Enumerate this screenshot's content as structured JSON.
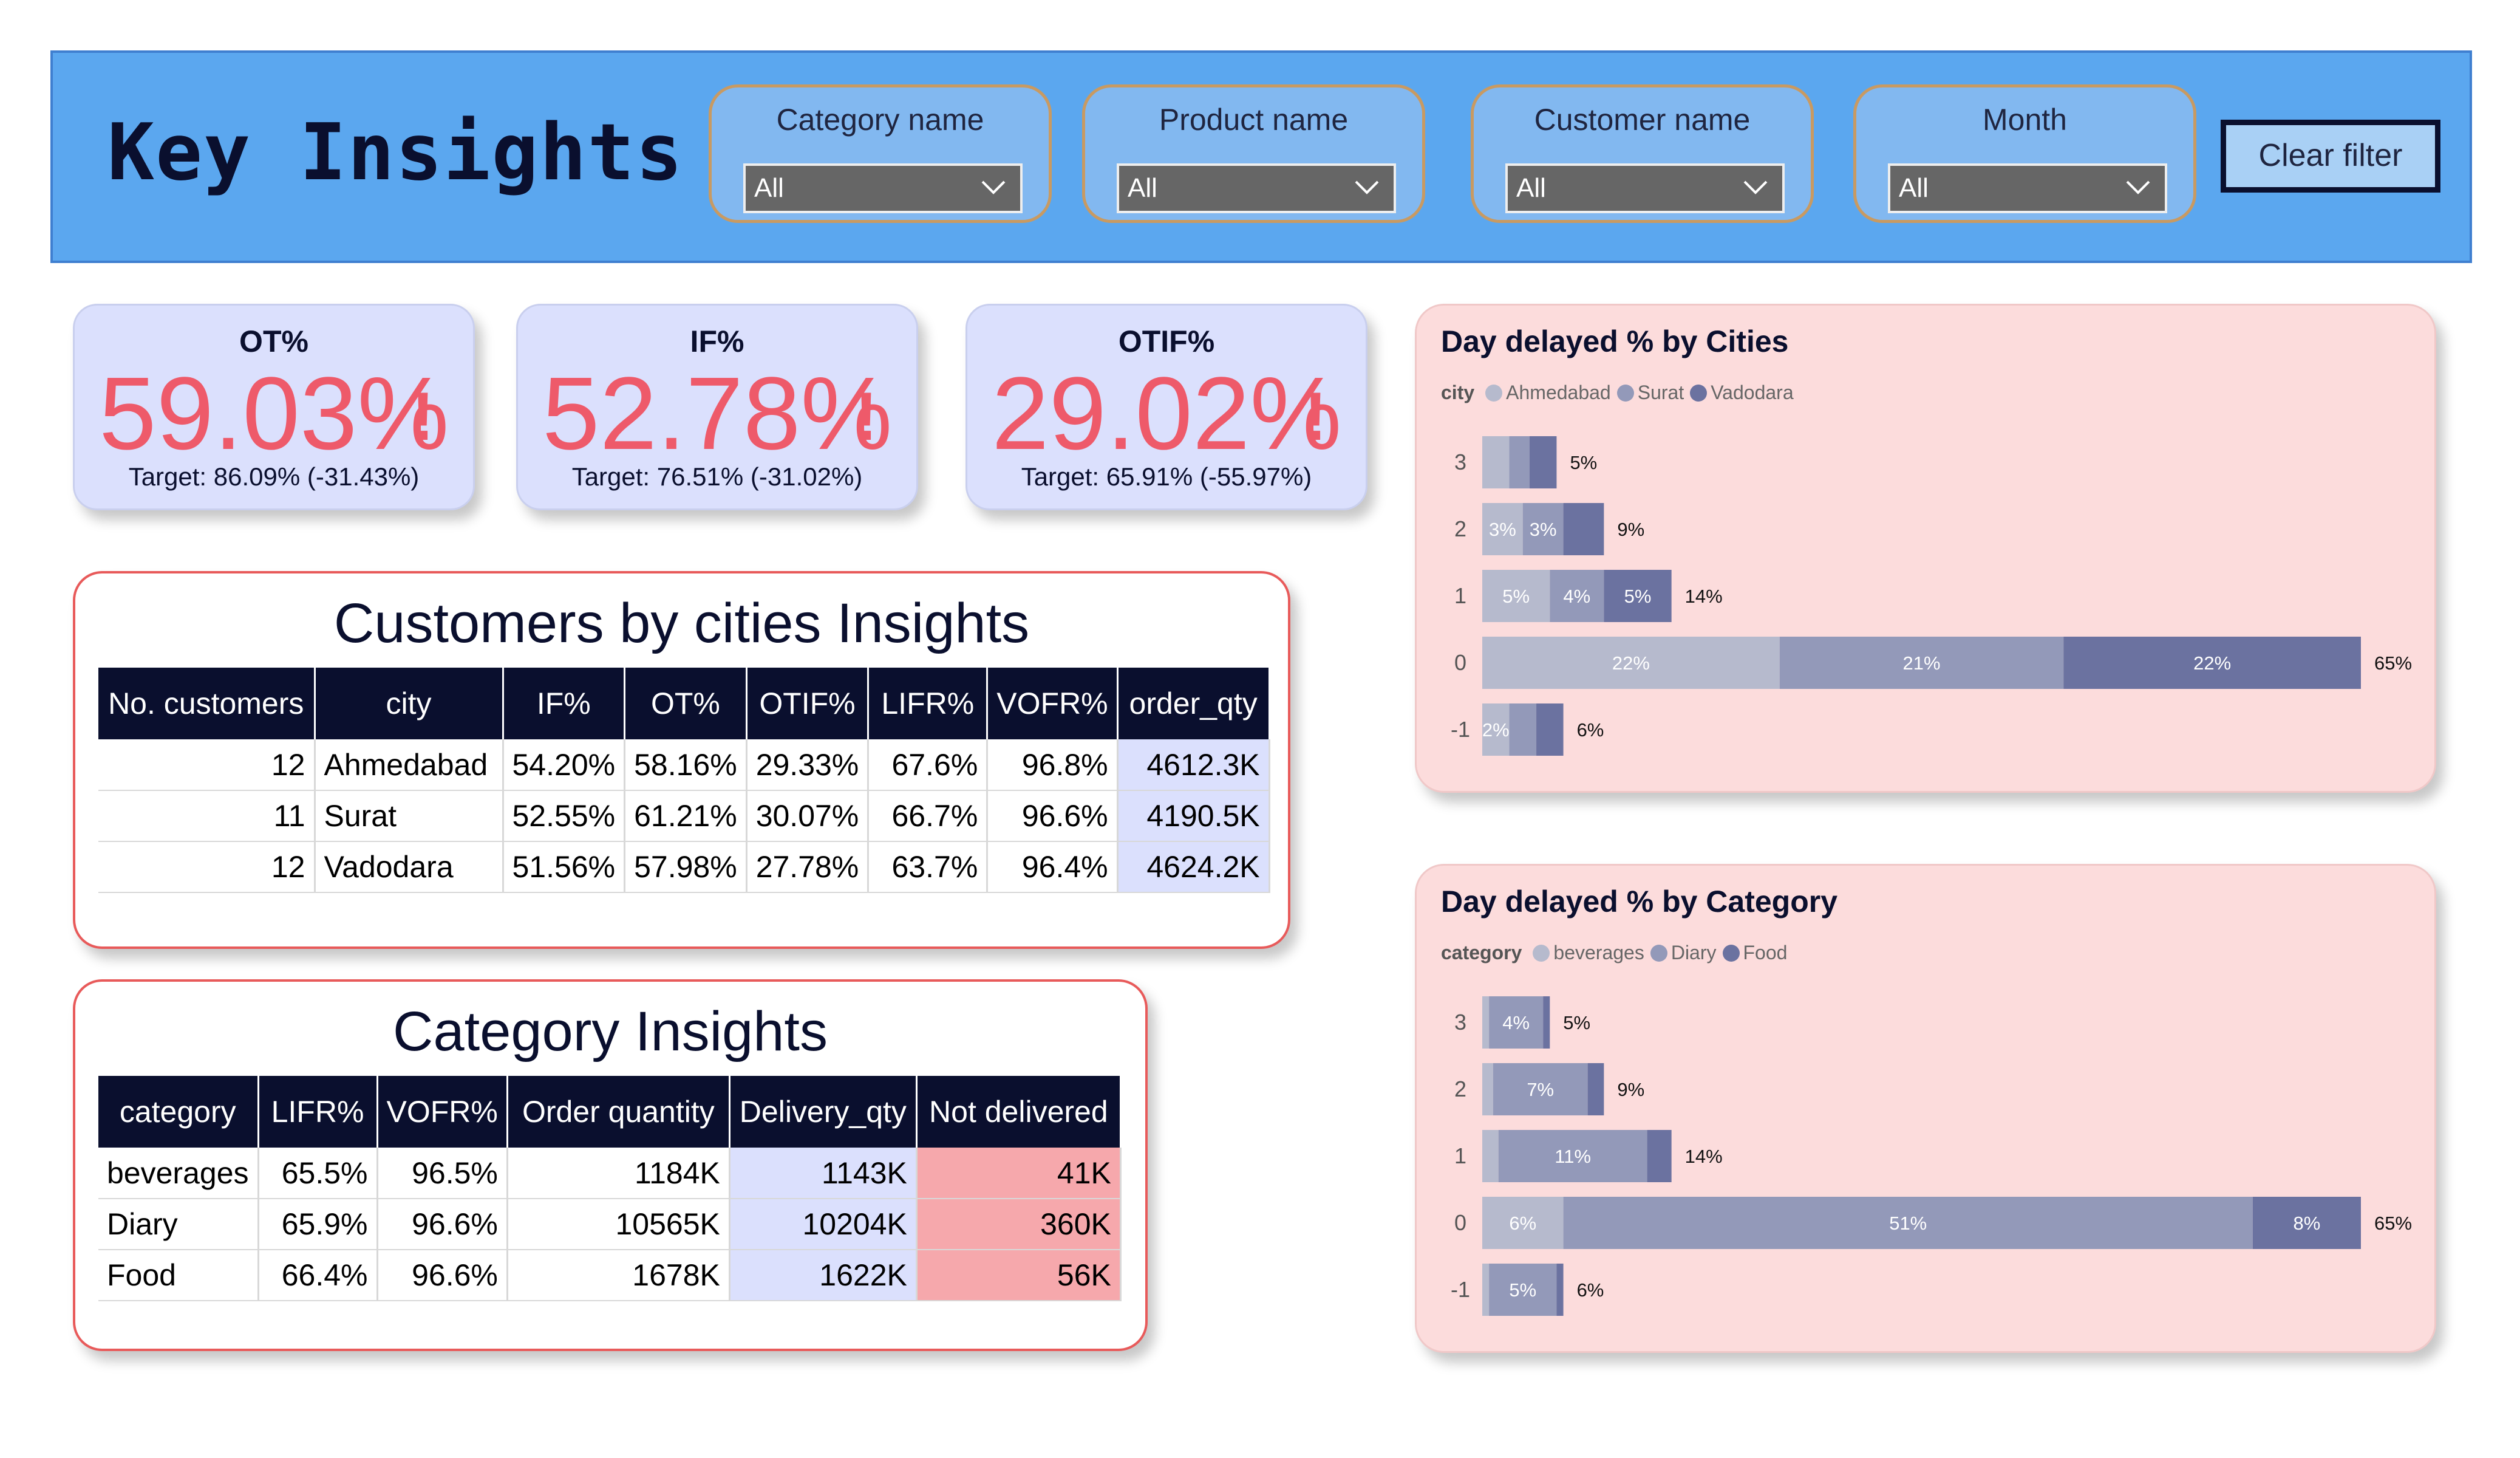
{
  "header": {
    "title": "Key Insights",
    "slicers": [
      {
        "label": "Category name",
        "value": "All"
      },
      {
        "label": "Product name",
        "value": "All"
      },
      {
        "label": "Customer name",
        "value": "All"
      },
      {
        "label": "Month",
        "value": "All"
      }
    ],
    "clear_filter": "Clear filter"
  },
  "kpis": [
    {
      "title": "OT%",
      "value": "59.03%",
      "alert": "!",
      "target": "Target: 86.09% (-31.43%)"
    },
    {
      "title": "IF%",
      "value": "52.78%",
      "alert": "!",
      "target": "Target: 76.51% (-31.02%)"
    },
    {
      "title": "OTIF%",
      "value": "29.02%",
      "alert": "!",
      "target": "Target: 65.91% (-55.97%)"
    }
  ],
  "customers_table": {
    "title": "Customers by cities Insights",
    "columns": [
      "No. customers",
      "city",
      "IF%",
      "OT%",
      "OTIF%",
      "LIFR%",
      "VOFR%",
      "order_qty"
    ],
    "rows": [
      [
        "12",
        "Ahmedabad",
        "54.20%",
        "58.16%",
        "29.33%",
        "67.6%",
        "96.8%",
        "4612.3K"
      ],
      [
        "11",
        "Surat",
        "52.55%",
        "61.21%",
        "30.07%",
        "66.7%",
        "96.6%",
        "4190.5K"
      ],
      [
        "12",
        "Vadodara",
        "51.56%",
        "57.98%",
        "27.78%",
        "63.7%",
        "96.4%",
        "4624.2K"
      ]
    ]
  },
  "category_table": {
    "title": "Category Insights",
    "columns": [
      "category",
      "LIFR%",
      "VOFR%",
      "Order quantity",
      "Delivery_qty",
      "Not delivered"
    ],
    "rows": [
      [
        "beverages",
        "65.5%",
        "96.5%",
        "1184K",
        "1143K",
        "41K"
      ],
      [
        "Diary",
        "65.9%",
        "96.6%",
        "10565K",
        "10204K",
        "360K"
      ],
      [
        "Food",
        "66.4%",
        "96.6%",
        "1678K",
        "1622K",
        "56K"
      ]
    ]
  },
  "chart_data": [
    {
      "type": "bar",
      "orientation": "horizontal",
      "stacked": true,
      "title": "Day delayed % by Cities",
      "legend_title": "city",
      "legend_position": "top-left",
      "categories": [
        "3",
        "2",
        "1",
        "0",
        "-1"
      ],
      "series": [
        {
          "name": "Ahmedabad",
          "color": "#b6bacd",
          "values": [
            2,
            3,
            5,
            22,
            2
          ],
          "labels": [
            "",
            "3%",
            "5%",
            "22%",
            "2%"
          ]
        },
        {
          "name": "Surat",
          "color": "#9399b9",
          "values": [
            1.5,
            3,
            4,
            21,
            2
          ],
          "labels": [
            "",
            "3%",
            "4%",
            "21%",
            ""
          ]
        },
        {
          "name": "Vadodara",
          "color": "#6b72a0",
          "values": [
            2,
            3,
            5,
            22,
            2
          ],
          "labels": [
            "",
            "",
            "5%",
            "22%",
            ""
          ]
        }
      ],
      "totals": [
        "5%",
        "9%",
        "14%",
        "65%",
        "6%"
      ],
      "xlim": [
        0,
        65
      ]
    },
    {
      "type": "bar",
      "orientation": "horizontal",
      "stacked": true,
      "title": "Day delayed % by Category",
      "legend_title": "category",
      "legend_position": "top-left",
      "categories": [
        "3",
        "2",
        "1",
        "0",
        "-1"
      ],
      "series": [
        {
          "name": "beverages",
          "color": "#b6bacd",
          "values": [
            0.5,
            0.8,
            1.2,
            6,
            0.5
          ],
          "labels": [
            "",
            "",
            "",
            "6%",
            ""
          ]
        },
        {
          "name": "Diary",
          "color": "#9399b9",
          "values": [
            4,
            7,
            11,
            51,
            5
          ],
          "labels": [
            "4%",
            "7%",
            "11%",
            "51%",
            "5%"
          ]
        },
        {
          "name": "Food",
          "color": "#6b72a0",
          "values": [
            0.5,
            1.2,
            1.8,
            8,
            0.5
          ],
          "labels": [
            "",
            "",
            "",
            "8%",
            ""
          ]
        }
      ],
      "totals": [
        "5%",
        "9%",
        "14%",
        "65%",
        "6%"
      ],
      "xlim": [
        0,
        65
      ]
    }
  ]
}
